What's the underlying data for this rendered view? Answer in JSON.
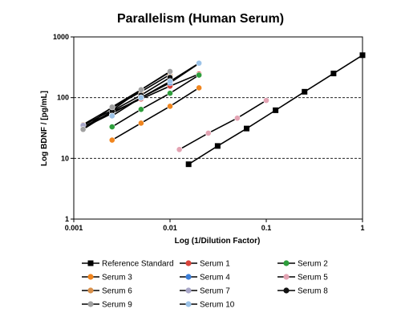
{
  "chart_data": {
    "type": "scatter",
    "title": "Parallelism (Human Serum)",
    "xlabel": "Log (1/Dilution Factor)",
    "ylabel": "Log BDNF / [pg/mL]",
    "xscale": "log",
    "yscale": "log",
    "xlim": [
      0.001,
      1
    ],
    "ylim": [
      1,
      1000
    ],
    "xticks": [
      0.001,
      0.01,
      0.1,
      1
    ],
    "xtick_labels": [
      "0.001",
      "0.01",
      "0.1",
      "1"
    ],
    "yticks": [
      1,
      10,
      100,
      1000
    ],
    "ytick_labels": [
      "1",
      "10",
      "100",
      "1000"
    ],
    "grid": "horizontal-dashed",
    "legend_position": "bottom",
    "series": [
      {
        "name": "Reference Standard",
        "color": "#000000",
        "marker": "square",
        "x": [
          0.0156,
          0.03125,
          0.0625,
          0.125,
          0.25,
          0.5,
          1
        ],
        "y": [
          8,
          16,
          31,
          62,
          125,
          250,
          500
        ]
      },
      {
        "name": "Serum 1",
        "color": "#d9443b",
        "marker": "circle",
        "x": [
          0.00125,
          0.0025,
          0.005,
          0.01,
          0.02
        ],
        "y": [
          33,
          58,
          95,
          155,
          245
        ]
      },
      {
        "name": "Serum 2",
        "color": "#2e9e3c",
        "marker": "circle",
        "x": [
          0.0025,
          0.005,
          0.01,
          0.02
        ],
        "y": [
          33,
          64,
          118,
          235
        ]
      },
      {
        "name": "Serum 3",
        "color": "#f0851e",
        "marker": "circle",
        "x": [
          0.0025,
          0.005,
          0.01,
          0.02
        ],
        "y": [
          20,
          38,
          72,
          145
        ]
      },
      {
        "name": "Serum 4",
        "color": "#3b7fd9",
        "marker": "circle",
        "x": [
          0.00125,
          0.0025,
          0.005,
          0.01,
          0.02
        ],
        "y": [
          32,
          55,
          100,
          175,
          365
        ]
      },
      {
        "name": "Serum 5",
        "color": "#e3a3b3",
        "marker": "circle",
        "x": [
          0.0125,
          0.025,
          0.05,
          0.1
        ],
        "y": [
          14,
          26,
          46,
          90
        ]
      },
      {
        "name": "Serum 6",
        "color": "#d9904a",
        "marker": "circle",
        "x": [
          0.00125,
          0.0025,
          0.005,
          0.01
        ],
        "y": [
          36,
          68,
          125,
          240
        ]
      },
      {
        "name": "Serum 7",
        "color": "#a8a6c8",
        "marker": "circle",
        "x": [
          0.00125,
          0.0025,
          0.005,
          0.01
        ],
        "y": [
          35,
          62,
          135,
          265
        ]
      },
      {
        "name": "Serum 8",
        "color": "#111111",
        "marker": "circle",
        "x": [
          0.00125,
          0.0025,
          0.005,
          0.01
        ],
        "y": [
          30,
          60,
          110,
          215
        ]
      },
      {
        "name": "Serum 9",
        "color": "#a0a0a0",
        "marker": "circle",
        "x": [
          0.00125,
          0.0025,
          0.005,
          0.01
        ],
        "y": [
          30,
          70,
          135,
          270
        ]
      },
      {
        "name": "Serum 10",
        "color": "#9cc3e8",
        "marker": "circle",
        "x": [
          0.0025,
          0.005,
          0.01,
          0.02
        ],
        "y": [
          50,
          100,
          185,
          370
        ]
      }
    ]
  }
}
